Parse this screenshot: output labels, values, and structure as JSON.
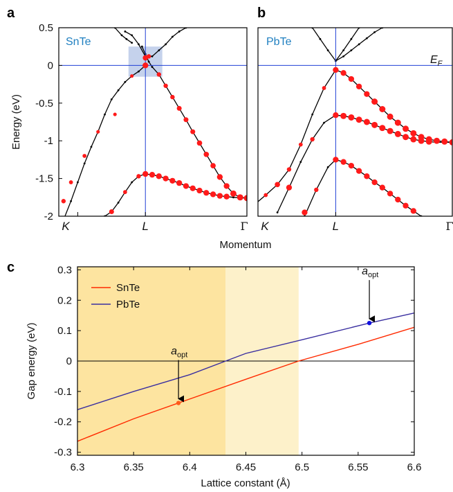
{
  "colors": {
    "band": "#000000",
    "weight_dot": "#ff1a1a",
    "guide_line": "#1f3fd6",
    "highlight_box": "#c5d2ec",
    "snte_line": "#ff2a00",
    "pbte_line": "#3a2fa0",
    "zone_dark": "#fde4a0",
    "zone_light": "#fdf1ca",
    "opt_snte": "#ff5a1a",
    "opt_pbte": "#1010e0"
  },
  "chart_data": [
    {
      "panel": "a",
      "type": "line",
      "label": "SnTe",
      "xlabel": "Momentum",
      "ylabel": "Energy (eV)",
      "ylim": [
        -2,
        0.5
      ],
      "yticks": [
        "0.5",
        "0",
        "-0.5",
        "-1",
        "-1.5",
        "-2"
      ],
      "kpoints": [
        "K",
        "L",
        "Γ"
      ],
      "kpos": [
        0,
        1,
        2.5
      ],
      "fermi_level": 0,
      "bands": [
        {
          "x": [
            -0.21,
            -0.1,
            0,
            0.1,
            0.2,
            0.3,
            0.4,
            0.5,
            0.6,
            0.7,
            0.8,
            0.9,
            1.0
          ],
          "y": [
            -2.05,
            -1.8,
            -1.55,
            -1.3,
            -1.08,
            -0.88,
            -0.65,
            -0.45,
            -0.33,
            -0.22,
            -0.14,
            -0.08,
            0.0
          ]
        },
        {
          "x": [
            0.7,
            0.8,
            0.9,
            1.0,
            1.1,
            1.2,
            1.3,
            1.4,
            1.5,
            1.6,
            1.7,
            1.8,
            1.9,
            2.0,
            2.1,
            2.2,
            2.3,
            2.4,
            2.5
          ],
          "y": [
            0.45,
            0.4,
            0.28,
            0.12,
            0.12,
            0.2,
            0.28,
            0.38,
            0.45,
            0.5,
            0.55,
            0.6,
            0.65,
            0.7,
            0.74,
            0.78,
            0.8,
            0.82,
            0.83
          ]
        },
        {
          "x": [
            0.95,
            1.0,
            1.05,
            1.1,
            1.2,
            1.3,
            1.4,
            1.5,
            1.6,
            1.7,
            1.8,
            1.9,
            2.0,
            2.1,
            2.2,
            2.3,
            2.4,
            2.5
          ],
          "y": [
            0.25,
            0.15,
            0.05,
            -0.02,
            -0.12,
            -0.27,
            -0.42,
            -0.57,
            -0.72,
            -0.88,
            -1.03,
            -1.18,
            -1.33,
            -1.48,
            -1.6,
            -1.7,
            -1.75,
            -1.76
          ]
        },
        {
          "x": [
            0.4,
            0.5,
            0.6,
            0.7,
            0.8,
            0.9,
            1.0
          ],
          "y": [
            -2.0,
            -1.94,
            -1.82,
            -1.68,
            -1.55,
            -1.47,
            -1.44
          ]
        },
        {
          "x": [
            1.0,
            1.1,
            1.2,
            1.3,
            1.4,
            1.5,
            1.6,
            1.7,
            1.8,
            1.9,
            2.0,
            2.1,
            2.2,
            2.3,
            2.4,
            2.5
          ],
          "y": [
            -1.44,
            -1.45,
            -1.47,
            -1.5,
            -1.53,
            -1.56,
            -1.6,
            -1.63,
            -1.66,
            -1.69,
            -1.71,
            -1.73,
            -1.74,
            -1.75,
            -1.755,
            -1.76
          ]
        },
        {
          "x": [
            0.55,
            0.65,
            0.72,
            0.8
          ],
          "y": [
            0.5,
            0.4,
            0.35,
            0.3
          ]
        }
      ],
      "weighted_points": [
        {
          "x": -0.21,
          "y": -1.8,
          "w": 0.5
        },
        {
          "x": -0.1,
          "y": -1.55,
          "w": 0.4
        },
        {
          "x": 0.1,
          "y": -1.2,
          "w": 0.4
        },
        {
          "x": 0.3,
          "y": -0.88,
          "w": 0.3
        },
        {
          "x": 0.55,
          "y": -0.65,
          "w": 0.3
        },
        {
          "x": 0.8,
          "y": -0.14,
          "w": 0.3
        },
        {
          "x": 1.0,
          "y": 0.1,
          "w": 0.7
        },
        {
          "x": 1.0,
          "y": 0.0,
          "w": 0.8
        },
        {
          "x": 1.05,
          "y": 0.12,
          "w": 0.5
        },
        {
          "x": 1.2,
          "y": -0.12,
          "w": 0.5
        },
        {
          "x": 1.3,
          "y": -0.27,
          "w": 0.5
        },
        {
          "x": 1.4,
          "y": -0.42,
          "w": 0.5
        },
        {
          "x": 1.5,
          "y": -0.57,
          "w": 0.6
        },
        {
          "x": 1.6,
          "y": -0.72,
          "w": 0.6
        },
        {
          "x": 1.7,
          "y": -0.88,
          "w": 0.6
        },
        {
          "x": 1.8,
          "y": -1.03,
          "w": 0.7
        },
        {
          "x": 1.9,
          "y": -1.18,
          "w": 0.7
        },
        {
          "x": 2.0,
          "y": -1.33,
          "w": 0.7
        },
        {
          "x": 2.1,
          "y": -1.48,
          "w": 0.8
        },
        {
          "x": 2.2,
          "y": -1.6,
          "w": 0.8
        },
        {
          "x": 2.3,
          "y": -1.7,
          "w": 0.9
        },
        {
          "x": 2.4,
          "y": -1.75,
          "w": 0.9
        },
        {
          "x": 2.5,
          "y": -1.76,
          "w": 0.9
        },
        {
          "x": 0.5,
          "y": -1.94,
          "w": 0.6
        },
        {
          "x": 0.7,
          "y": -1.68,
          "w": 0.4
        },
        {
          "x": 0.9,
          "y": -1.47,
          "w": 0.5
        },
        {
          "x": 1.0,
          "y": -1.44,
          "w": 0.8
        },
        {
          "x": 1.1,
          "y": -1.45,
          "w": 0.8
        },
        {
          "x": 1.2,
          "y": -1.47,
          "w": 0.8
        },
        {
          "x": 1.3,
          "y": -1.5,
          "w": 0.8
        },
        {
          "x": 1.4,
          "y": -1.53,
          "w": 0.8
        },
        {
          "x": 1.5,
          "y": -1.56,
          "w": 0.8
        },
        {
          "x": 1.6,
          "y": -1.6,
          "w": 0.8
        },
        {
          "x": 1.7,
          "y": -1.63,
          "w": 0.8
        },
        {
          "x": 1.8,
          "y": -1.66,
          "w": 0.8
        },
        {
          "x": 1.9,
          "y": -1.69,
          "w": 0.8
        },
        {
          "x": 2.0,
          "y": -1.71,
          "w": 0.8
        },
        {
          "x": 2.1,
          "y": -1.73,
          "w": 0.8
        },
        {
          "x": 2.2,
          "y": -1.74,
          "w": 0.8
        }
      ],
      "highlight": {
        "x": [
          0.75,
          1.25
        ],
        "y": [
          -0.15,
          0.25
        ]
      }
    },
    {
      "panel": "b",
      "type": "line",
      "label": "PbTe",
      "fermi_label": "E",
      "fermi_sub": "F",
      "ylim": [
        -2,
        0.5
      ],
      "kpoints": [
        "K",
        "L",
        "Γ"
      ],
      "kpos": [
        0,
        1,
        2.5
      ],
      "fermi_level": 0,
      "bands": [
        {
          "x": [
            -0.05,
            0.1,
            0.25,
            0.4,
            0.55,
            0.7,
            0.85,
            1.0
          ],
          "y": [
            -1.85,
            -1.72,
            -1.58,
            -1.38,
            -1.05,
            -0.65,
            -0.3,
            -0.06
          ]
        },
        {
          "x": [
            1.0,
            1.1,
            1.2,
            1.3,
            1.4,
            1.5,
            1.6,
            1.7,
            1.8,
            1.9,
            2.0,
            2.1,
            2.2,
            2.3,
            2.4,
            2.5
          ],
          "y": [
            -0.06,
            -0.1,
            -0.18,
            -0.28,
            -0.38,
            -0.48,
            -0.58,
            -0.68,
            -0.76,
            -0.84,
            -0.9,
            -0.95,
            -0.98,
            -1.0,
            -1.01,
            -1.02
          ]
        },
        {
          "x": [
            0.25,
            0.4,
            0.55,
            0.7,
            0.85,
            1.0
          ],
          "y": [
            -1.95,
            -1.62,
            -1.28,
            -0.98,
            -0.76,
            -0.66
          ]
        },
        {
          "x": [
            1.0,
            1.1,
            1.2,
            1.3,
            1.4,
            1.5,
            1.6,
            1.7,
            1.8,
            1.9,
            2.0,
            2.1,
            2.2,
            2.3,
            2.4,
            2.5
          ],
          "y": [
            -0.66,
            -0.67,
            -0.69,
            -0.72,
            -0.75,
            -0.79,
            -0.83,
            -0.87,
            -0.91,
            -0.95,
            -0.98,
            -1.0,
            -1.01,
            -1.02,
            -1.02,
            -1.02
          ]
        },
        {
          "x": [
            0.6,
            0.75,
            0.9,
            1.0
          ],
          "y": [
            -2.0,
            -1.65,
            -1.35,
            -1.25
          ]
        },
        {
          "x": [
            1.0,
            1.1,
            1.2,
            1.3,
            1.4,
            1.5,
            1.6,
            1.7,
            1.8,
            1.9,
            2.0,
            2.1
          ],
          "y": [
            -1.25,
            -1.28,
            -1.33,
            -1.4,
            -1.47,
            -1.55,
            -1.62,
            -1.7,
            -1.78,
            -1.86,
            -1.93,
            -2.0
          ]
        },
        {
          "x": [
            0.7,
            0.8,
            0.9,
            1.0,
            1.1,
            1.2,
            1.3,
            1.4,
            1.5,
            1.6,
            1.7,
            1.8,
            1.9,
            2.0,
            2.1,
            2.2,
            2.3,
            2.4,
            2.5
          ],
          "y": [
            0.5,
            0.35,
            0.2,
            0.06,
            0.12,
            0.2,
            0.28,
            0.36,
            0.44,
            0.5,
            0.55,
            0.6,
            0.65,
            0.7,
            0.74,
            0.78,
            0.8,
            0.82,
            0.83
          ]
        },
        {
          "x": [
            1.0,
            1.1,
            1.2,
            1.3
          ],
          "y": [
            0.06,
            0.2,
            0.35,
            0.5
          ]
        }
      ],
      "weighted_points": [
        {
          "x": 0.1,
          "y": -1.72,
          "w": 0.4
        },
        {
          "x": 0.25,
          "y": -1.58,
          "w": 0.7
        },
        {
          "x": 0.4,
          "y": -1.38,
          "w": 0.5
        },
        {
          "x": 0.55,
          "y": -1.05,
          "w": 0.4
        },
        {
          "x": 0.85,
          "y": -0.3,
          "w": 0.4
        },
        {
          "x": 1.0,
          "y": -0.06,
          "w": 0.8
        },
        {
          "x": 1.1,
          "y": -0.1,
          "w": 0.8
        },
        {
          "x": 1.2,
          "y": -0.18,
          "w": 0.8
        },
        {
          "x": 1.3,
          "y": -0.28,
          "w": 0.8
        },
        {
          "x": 1.4,
          "y": -0.38,
          "w": 0.8
        },
        {
          "x": 1.5,
          "y": -0.48,
          "w": 0.9
        },
        {
          "x": 1.6,
          "y": -0.58,
          "w": 0.9
        },
        {
          "x": 1.7,
          "y": -0.68,
          "w": 0.9
        },
        {
          "x": 1.8,
          "y": -0.76,
          "w": 0.9
        },
        {
          "x": 1.9,
          "y": -0.84,
          "w": 0.9
        },
        {
          "x": 2.0,
          "y": -0.9,
          "w": 0.9
        },
        {
          "x": 2.1,
          "y": -0.95,
          "w": 0.9
        },
        {
          "x": 2.2,
          "y": -0.98,
          "w": 0.9
        },
        {
          "x": 2.3,
          "y": -1.0,
          "w": 0.9
        },
        {
          "x": 2.4,
          "y": -1.01,
          "w": 0.9
        },
        {
          "x": 2.5,
          "y": -1.02,
          "w": 0.9
        },
        {
          "x": 0.4,
          "y": -1.62,
          "w": 0.8
        },
        {
          "x": 0.7,
          "y": -0.98,
          "w": 0.5
        },
        {
          "x": 1.0,
          "y": -0.66,
          "w": 0.8
        },
        {
          "x": 1.1,
          "y": -0.67,
          "w": 0.9
        },
        {
          "x": 1.2,
          "y": -0.69,
          "w": 0.9
        },
        {
          "x": 1.3,
          "y": -0.72,
          "w": 0.9
        },
        {
          "x": 1.4,
          "y": -0.75,
          "w": 0.9
        },
        {
          "x": 1.5,
          "y": -0.79,
          "w": 0.9
        },
        {
          "x": 1.6,
          "y": -0.83,
          "w": 0.9
        },
        {
          "x": 1.7,
          "y": -0.87,
          "w": 0.9
        },
        {
          "x": 1.8,
          "y": -0.91,
          "w": 0.9
        },
        {
          "x": 1.9,
          "y": -0.95,
          "w": 0.9
        },
        {
          "x": 2.0,
          "y": -0.98,
          "w": 0.9
        },
        {
          "x": 2.1,
          "y": -1.0,
          "w": 0.9
        },
        {
          "x": 2.2,
          "y": -1.01,
          "w": 0.9
        },
        {
          "x": 0.6,
          "y": -1.95,
          "w": 0.8
        },
        {
          "x": 0.75,
          "y": -1.65,
          "w": 0.5
        },
        {
          "x": 1.0,
          "y": -1.25,
          "w": 0.8
        },
        {
          "x": 1.1,
          "y": -1.28,
          "w": 0.8
        },
        {
          "x": 1.2,
          "y": -1.33,
          "w": 0.8
        },
        {
          "x": 1.3,
          "y": -1.4,
          "w": 0.8
        },
        {
          "x": 1.4,
          "y": -1.47,
          "w": 0.8
        },
        {
          "x": 1.5,
          "y": -1.55,
          "w": 0.8
        },
        {
          "x": 1.6,
          "y": -1.62,
          "w": 0.8
        },
        {
          "x": 1.7,
          "y": -1.7,
          "w": 0.8
        },
        {
          "x": 1.8,
          "y": -1.78,
          "w": 0.8
        },
        {
          "x": 1.9,
          "y": -1.86,
          "w": 0.8
        },
        {
          "x": 2.0,
          "y": -1.93,
          "w": 0.8
        },
        {
          "x": -0.05,
          "y": -1.85,
          "w": 0.8
        }
      ]
    },
    {
      "panel": "c",
      "type": "line",
      "xlabel": "Lattice constant (Å)",
      "ylabel": "Gap energy (eV)",
      "xlim": [
        6.3,
        6.6
      ],
      "ylim": [
        -0.31,
        0.31
      ],
      "xticks": [
        "6.3",
        "6.35",
        "6.4",
        "6.45",
        "6.5",
        "6.55",
        "6.6"
      ],
      "yticks": [
        "0.3",
        "0.2",
        "0.1",
        "0",
        "-0.1",
        "-0.2",
        "-0.3"
      ],
      "shaded_regions": [
        {
          "x": [
            6.3,
            6.432
          ],
          "shade": "dark"
        },
        {
          "x": [
            6.432,
            6.497
          ],
          "shade": "light"
        }
      ],
      "series": [
        {
          "name": "SnTe",
          "x": [
            6.3,
            6.35,
            6.39,
            6.45,
            6.497,
            6.55,
            6.6
          ],
          "y": [
            -0.264,
            -0.19,
            -0.138,
            -0.06,
            0.0,
            0.055,
            0.111
          ]
        },
        {
          "name": "PbTe",
          "x": [
            6.3,
            6.35,
            6.4,
            6.432,
            6.45,
            6.5,
            6.56,
            6.6
          ],
          "y": [
            -0.16,
            -0.1,
            -0.045,
            0.0,
            0.025,
            0.07,
            0.125,
            0.158
          ]
        }
      ],
      "optimum_points": [
        {
          "series": "SnTe",
          "x": 6.39,
          "y": -0.138,
          "label": "a",
          "sub": "opt"
        },
        {
          "series": "PbTe",
          "x": 6.56,
          "y": 0.125,
          "label": "a",
          "sub": "opt"
        }
      ]
    }
  ]
}
